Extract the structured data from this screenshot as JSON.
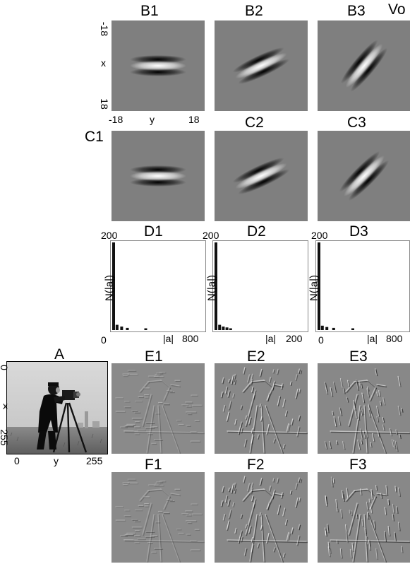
{
  "labels": {
    "B1": "B1",
    "B2": "B2",
    "B3": "B3",
    "C1": "C1",
    "C2": "C2",
    "C3": "C3",
    "D1": "D1",
    "D2": "D2",
    "D3": "D3",
    "A": "A",
    "E1": "E1",
    "E2": "E2",
    "E3": "E3",
    "F1": "F1",
    "F2": "F2",
    "F3": "F3",
    "corner": "Vo"
  },
  "kernel_axes": {
    "x_top": "-18",
    "x_bottom": "18",
    "x_label": "x",
    "y_left": "-18",
    "y_right": "18",
    "y_label": "y"
  },
  "image_axes": {
    "x_top": "0",
    "x_bottom": "255",
    "x_label": "x",
    "y_left": "0",
    "y_right": "255",
    "y_label": "y"
  },
  "hist_axes": {
    "ymax": "200",
    "ylabel": "N(|a|)",
    "origin": "0",
    "xlabel": "|a|",
    "xmax_1": "800",
    "xmax_2": "200",
    "xmax_3": "800"
  },
  "kernel_orientations_deg": {
    "B1": 0,
    "B2": 25,
    "B3": 50,
    "C1": 0,
    "C2": 25,
    "C3": 45
  },
  "chart_data": [
    {
      "type": "bar",
      "name": "D1",
      "ylabel": "N(|a|)",
      "xlabel": "|a|",
      "xlim": [
        0,
        800
      ],
      "ylim": [
        0,
        200
      ],
      "x": [
        0,
        30,
        70,
        120,
        280
      ],
      "values": [
        200,
        12,
        8,
        5,
        4
      ]
    },
    {
      "type": "bar",
      "name": "D2",
      "ylabel": "N(|a|)",
      "xlabel": "|a|",
      "xlim": [
        0,
        200
      ],
      "ylim": [
        0,
        200
      ],
      "x": [
        0,
        8,
        16,
        24,
        32
      ],
      "values": [
        200,
        12,
        8,
        6,
        4
      ]
    },
    {
      "type": "bar",
      "name": "D3",
      "ylabel": "N(|a|)",
      "xlabel": "|a|",
      "xlim": [
        0,
        800
      ],
      "ylim": [
        0,
        200
      ],
      "x": [
        0,
        30,
        70,
        130,
        300
      ],
      "values": [
        200,
        10,
        7,
        5,
        4
      ]
    }
  ]
}
